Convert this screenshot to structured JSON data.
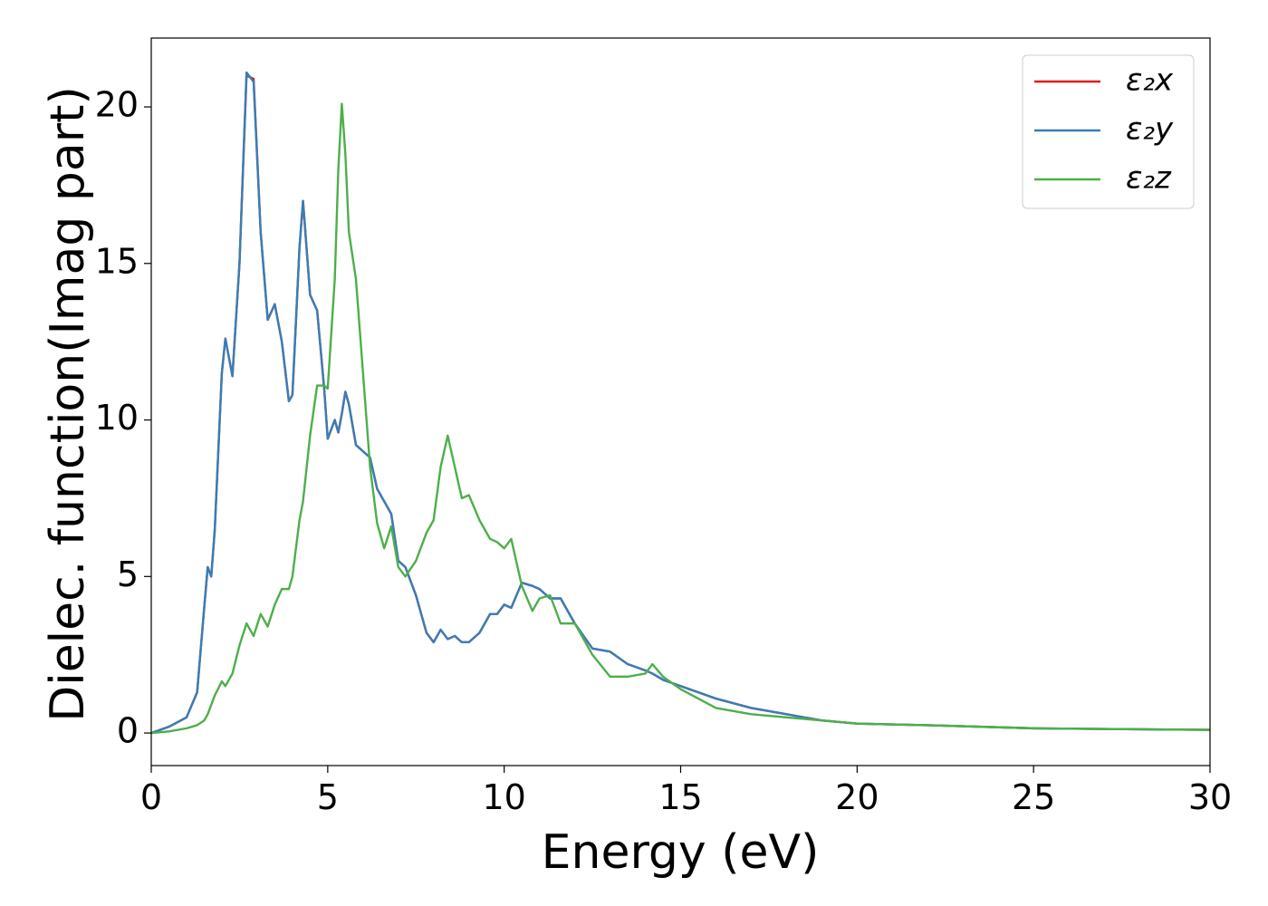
{
  "chart_data": {
    "type": "line",
    "xlabel": "Energy (eV)",
    "ylabel": "Dielec. function(Imag part)",
    "x": [
      0,
      0.5,
      1.0,
      1.3,
      1.5,
      1.6,
      1.7,
      1.8,
      2.0,
      2.1,
      2.3,
      2.5,
      2.7,
      2.9,
      3.1,
      3.3,
      3.5,
      3.7,
      3.9,
      4.0,
      4.2,
      4.3,
      4.5,
      4.7,
      4.9,
      5.0,
      5.2,
      5.3,
      5.4,
      5.5,
      5.6,
      5.8,
      6.0,
      6.2,
      6.4,
      6.6,
      6.8,
      7.0,
      7.2,
      7.5,
      7.8,
      8.0,
      8.2,
      8.4,
      8.6,
      8.8,
      9.0,
      9.3,
      9.6,
      9.8,
      10.0,
      10.2,
      10.5,
      10.8,
      11.0,
      11.3,
      11.6,
      12.0,
      12.5,
      13.0,
      13.5,
      14.0,
      14.2,
      14.5,
      15.0,
      15.5,
      16.0,
      17.0,
      18.0,
      19.0,
      20.0,
      22.0,
      25.0,
      30.0
    ],
    "series": [
      {
        "name": "ε₂x",
        "color": "#e41a1c",
        "values": [
          0,
          0.2,
          0.5,
          1.3,
          4.0,
          5.3,
          5.0,
          6.5,
          11.5,
          12.6,
          11.4,
          15,
          21.0,
          20.9,
          16,
          13.2,
          13.7,
          12.5,
          10.6,
          10.8,
          15.5,
          17.0,
          14,
          13.5,
          11,
          9.4,
          10.0,
          9.6,
          10.2,
          10.9,
          10.5,
          9.2,
          9.0,
          8.8,
          7.8,
          7.4,
          7.0,
          5.5,
          5.3,
          4.4,
          3.2,
          2.9,
          3.3,
          3.0,
          3.1,
          2.9,
          2.9,
          3.2,
          3.8,
          3.8,
          4.1,
          4.0,
          4.8,
          4.7,
          4.6,
          4.3,
          4.3,
          3.5,
          2.7,
          2.6,
          2.2,
          2.0,
          1.9,
          1.7,
          1.5,
          1.3,
          1.1,
          0.8,
          0.6,
          0.4,
          0.3,
          0.25,
          0.15,
          0.1
        ]
      },
      {
        "name": "ε₂y",
        "color": "#377eb8",
        "values": [
          0,
          0.2,
          0.5,
          1.3,
          4.0,
          5.3,
          5.0,
          6.5,
          11.5,
          12.6,
          11.4,
          15,
          21.1,
          20.8,
          16,
          13.2,
          13.7,
          12.5,
          10.6,
          10.8,
          15.5,
          17.0,
          14,
          13.5,
          11,
          9.4,
          10.0,
          9.6,
          10.2,
          10.9,
          10.5,
          9.2,
          9.0,
          8.8,
          7.8,
          7.4,
          7.0,
          5.5,
          5.3,
          4.4,
          3.2,
          2.9,
          3.3,
          3.0,
          3.1,
          2.9,
          2.9,
          3.2,
          3.8,
          3.8,
          4.1,
          4.0,
          4.8,
          4.7,
          4.6,
          4.3,
          4.3,
          3.5,
          2.7,
          2.6,
          2.2,
          2.0,
          1.9,
          1.7,
          1.5,
          1.3,
          1.1,
          0.8,
          0.6,
          0.4,
          0.3,
          0.25,
          0.15,
          0.1
        ]
      },
      {
        "name": "ε₂z",
        "color": "#4daf4a",
        "values": [
          0,
          0.05,
          0.15,
          0.25,
          0.4,
          0.6,
          0.9,
          1.2,
          1.65,
          1.5,
          1.9,
          2.8,
          3.5,
          3.1,
          3.8,
          3.4,
          4.1,
          4.6,
          4.6,
          5.0,
          6.8,
          7.4,
          9.5,
          11.1,
          11.1,
          11.0,
          14.5,
          18,
          20.1,
          18.5,
          16,
          14.5,
          11.5,
          8.5,
          6.7,
          5.9,
          6.6,
          5.3,
          5.0,
          5.5,
          6.4,
          6.8,
          8.5,
          9.5,
          8.5,
          7.5,
          7.6,
          6.8,
          6.2,
          6.1,
          5.9,
          6.2,
          4.7,
          3.9,
          4.3,
          4.4,
          3.5,
          3.5,
          2.5,
          1.8,
          1.8,
          1.9,
          2.2,
          1.8,
          1.4,
          1.1,
          0.8,
          0.6,
          0.5,
          0.4,
          0.3,
          0.25,
          0.15,
          0.1
        ]
      }
    ],
    "xlim": [
      0,
      30
    ],
    "ylim": [
      -1.04,
      22.2
    ],
    "xticks": [
      0,
      5,
      10,
      15,
      20,
      25,
      30
    ],
    "yticks": [
      0,
      5,
      10,
      15,
      20
    ],
    "legend": "upper right",
    "grid": false
  }
}
